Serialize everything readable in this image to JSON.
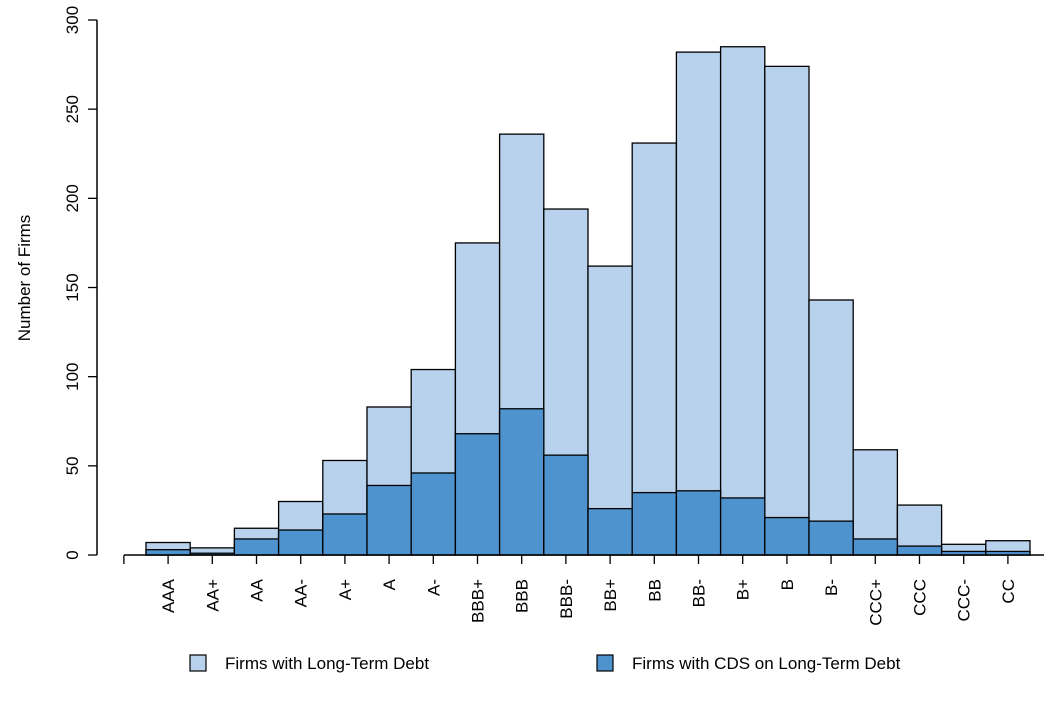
{
  "colors": {
    "long_term_debt": "#b8d2ee",
    "cds": "#4e93ce",
    "outline": "#000000"
  },
  "chart_data": {
    "type": "bar",
    "stacked": "overlay",
    "categories": [
      "AAA",
      "AA+",
      "AA",
      "AA-",
      "A+",
      "A",
      "A-",
      "BBB+",
      "BBB",
      "BBB-",
      "BB+",
      "BB",
      "BB-",
      "B+",
      "B",
      "B-",
      "CCC+",
      "CCC",
      "CCC-",
      "CC"
    ],
    "series": [
      {
        "name": "Firms with Long-Term Debt",
        "color": "#b8d2ee",
        "values": [
          7,
          4,
          15,
          30,
          53,
          83,
          104,
          175,
          236,
          194,
          162,
          231,
          282,
          285,
          274,
          143,
          59,
          28,
          6,
          8
        ]
      },
      {
        "name": "Firms with CDS on Long-Term Debt",
        "color": "#4e93ce",
        "values": [
          3,
          1,
          9,
          14,
          23,
          39,
          46,
          68,
          82,
          56,
          26,
          35,
          36,
          32,
          21,
          19,
          9,
          5,
          2,
          2
        ]
      }
    ],
    "ylabel": "Number of Firms",
    "xlabel": "",
    "ylim": [
      0,
      300
    ],
    "yticks": [
      "0",
      "50",
      "100",
      "150",
      "200",
      "250",
      "300"
    ],
    "grid": false,
    "legend_position": "bottom"
  }
}
